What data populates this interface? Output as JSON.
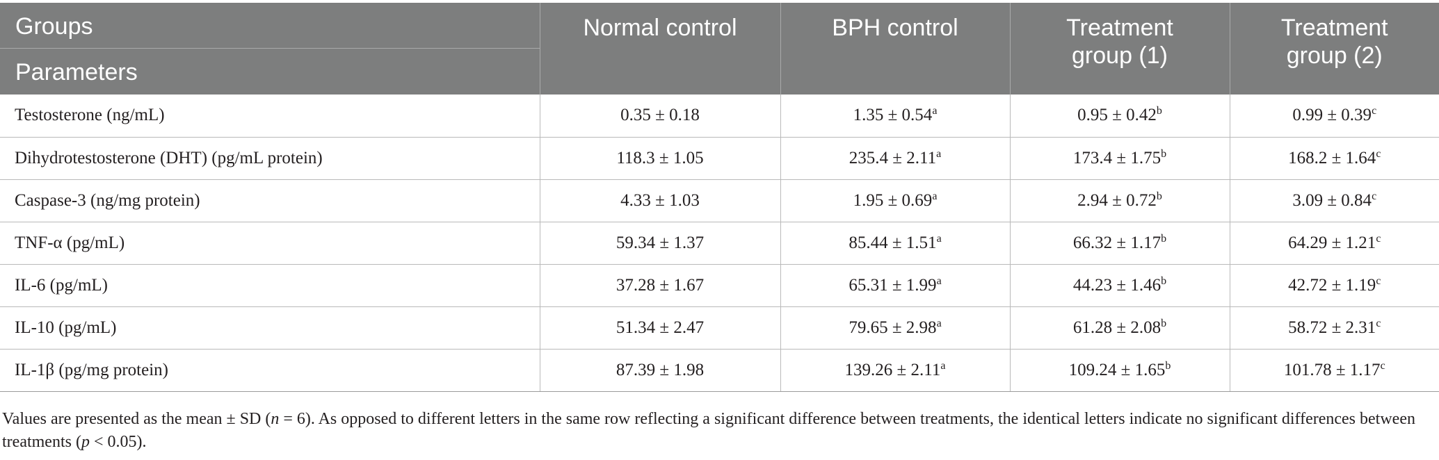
{
  "header": {
    "groups_label": "Groups",
    "parameters_label": "Parameters",
    "columns": [
      "Normal control",
      "BPH control",
      "Treatment group (1)",
      "Treatment group (2)"
    ]
  },
  "rows": [
    {
      "parameter": "Testosterone (ng/mL)",
      "cells": [
        {
          "value": "0.35 ± 0.18",
          "sup": ""
        },
        {
          "value": "1.35 ± 0.54",
          "sup": "a"
        },
        {
          "value": "0.95 ± 0.42",
          "sup": "b"
        },
        {
          "value": "0.99 ± 0.39",
          "sup": "c"
        }
      ]
    },
    {
      "parameter": "Dihydrotestosterone (DHT) (pg/mL protein)",
      "cells": [
        {
          "value": "118.3 ± 1.05",
          "sup": ""
        },
        {
          "value": "235.4 ± 2.11",
          "sup": "a"
        },
        {
          "value": "173.4 ± 1.75",
          "sup": "b"
        },
        {
          "value": "168.2 ± 1.64",
          "sup": "c"
        }
      ]
    },
    {
      "parameter": "Caspase-3 (ng/mg protein)",
      "cells": [
        {
          "value": "4.33 ± 1.03",
          "sup": ""
        },
        {
          "value": "1.95 ± 0.69",
          "sup": "a"
        },
        {
          "value": "2.94 ± 0.72",
          "sup": "b"
        },
        {
          "value": "3.09 ± 0.84",
          "sup": "c"
        }
      ]
    },
    {
      "parameter": "TNF-α (pg/mL)",
      "cells": [
        {
          "value": "59.34 ± 1.37",
          "sup": ""
        },
        {
          "value": "85.44 ± 1.51",
          "sup": "a"
        },
        {
          "value": "66.32 ± 1.17",
          "sup": "b"
        },
        {
          "value": "64.29 ± 1.21",
          "sup": "c"
        }
      ]
    },
    {
      "parameter": "IL-6 (pg/mL)",
      "cells": [
        {
          "value": "37.28 ± 1.67",
          "sup": ""
        },
        {
          "value": "65.31 ± 1.99",
          "sup": "a"
        },
        {
          "value": "44.23 ± 1.46",
          "sup": "b"
        },
        {
          "value": "42.72 ± 1.19",
          "sup": "c"
        }
      ]
    },
    {
      "parameter": "IL-10 (pg/mL)",
      "cells": [
        {
          "value": "51.34 ± 2.47",
          "sup": ""
        },
        {
          "value": "79.65 ± 2.98",
          "sup": "a"
        },
        {
          "value": "61.28 ± 2.08",
          "sup": "b"
        },
        {
          "value": "58.72 ± 2.31",
          "sup": "c"
        }
      ]
    },
    {
      "parameter": "IL-1β (pg/mg protein)",
      "cells": [
        {
          "value": "87.39 ± 1.98",
          "sup": ""
        },
        {
          "value": "139.26 ± 2.11",
          "sup": "a"
        },
        {
          "value": "109.24 ± 1.65",
          "sup": "b"
        },
        {
          "value": "101.78 ± 1.17",
          "sup": "c"
        }
      ]
    }
  ],
  "footnote": {
    "part1": "Values are presented as the mean ± SD (",
    "n_var": "n",
    "part2": " = 6). As opposed to different letters in the same row reflecting a significant difference between treatments, the identical letters indicate no significant differences between treatments (",
    "p_var": "p",
    "part3": " < 0.05)."
  }
}
